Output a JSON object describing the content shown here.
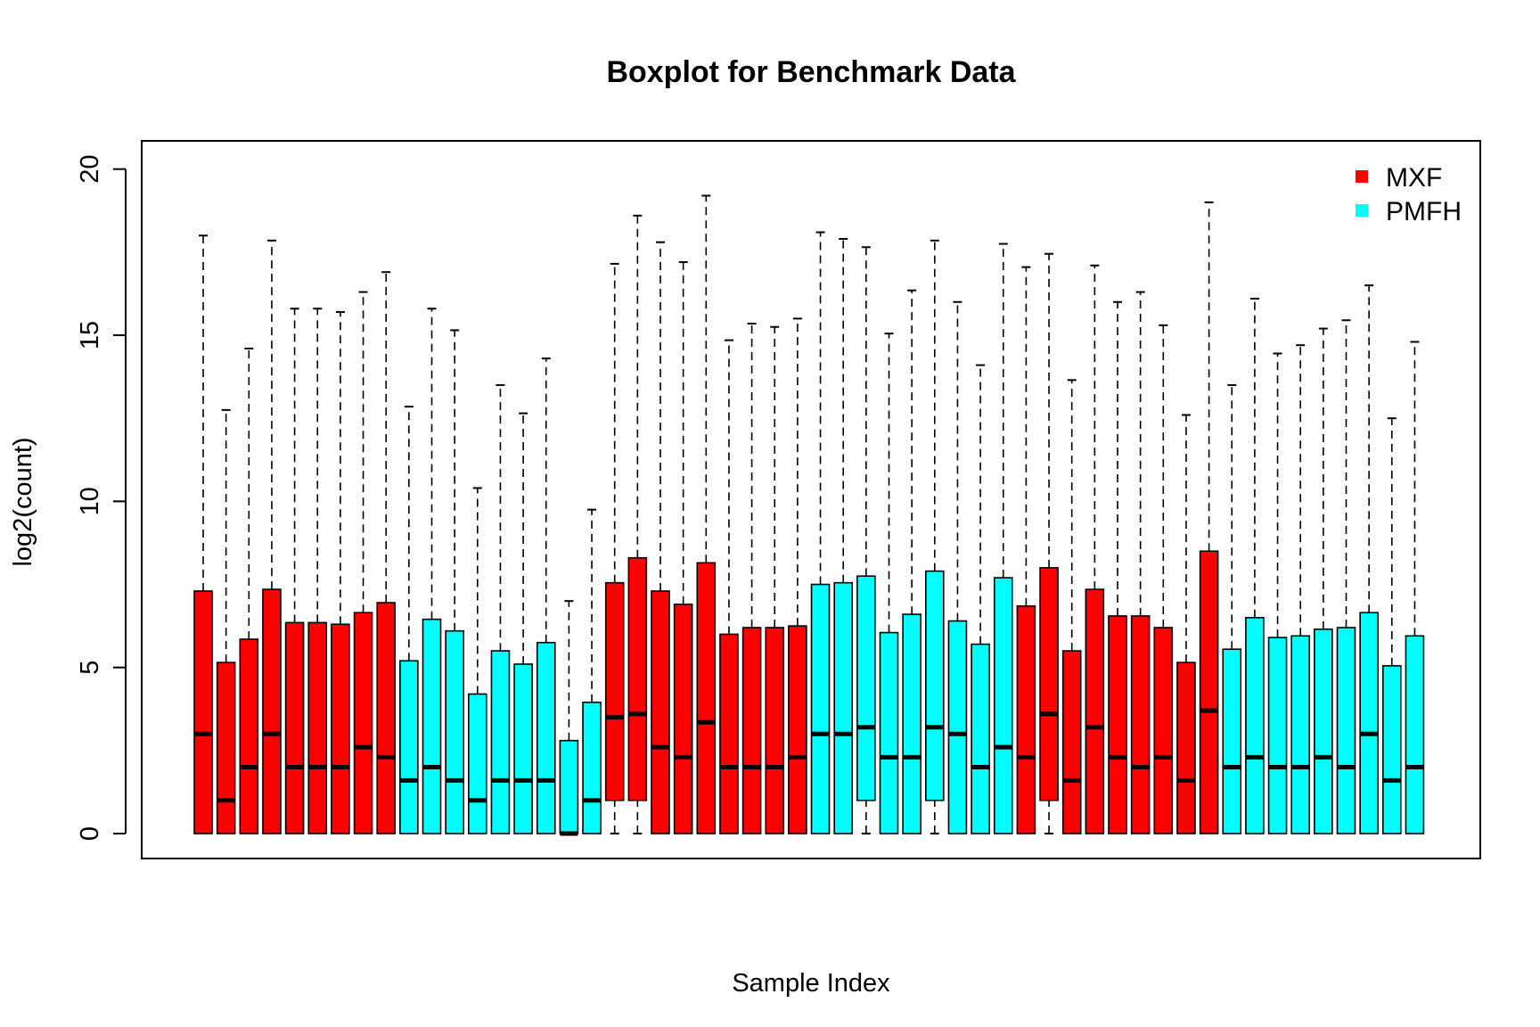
{
  "chart_data": {
    "type": "boxplot",
    "title": "Boxplot for Benchmark Data",
    "xlabel": "Sample Index",
    "ylabel": "log2(count)",
    "ylim": [
      -0.75,
      20.85
    ],
    "yticks": [
      0,
      5,
      10,
      15,
      20
    ],
    "grid": false,
    "legend_position": "top-right",
    "legend": [
      {
        "label": "MXF",
        "color": "#ff0000"
      },
      {
        "label": "PMFH",
        "color": "#00ffff"
      }
    ],
    "groups": {
      "MXF": "#ff0000",
      "PMFH": "#00ffff"
    },
    "samples": [
      {
        "group": "MXF",
        "min": 0,
        "q1": 0,
        "median": 3,
        "q3": 7.3,
        "max": 18.0
      },
      {
        "group": "MXF",
        "min": 0,
        "q1": 0,
        "median": 1,
        "q3": 5.15,
        "max": 12.75
      },
      {
        "group": "MXF",
        "min": 0,
        "q1": 0,
        "median": 2,
        "q3": 5.85,
        "max": 14.6
      },
      {
        "group": "MXF",
        "min": 0,
        "q1": 0,
        "median": 3,
        "q3": 7.35,
        "max": 17.85
      },
      {
        "group": "MXF",
        "min": 0,
        "q1": 0,
        "median": 2,
        "q3": 6.35,
        "max": 15.8
      },
      {
        "group": "MXF",
        "min": 0,
        "q1": 0,
        "median": 2,
        "q3": 6.35,
        "max": 15.8
      },
      {
        "group": "MXF",
        "min": 0,
        "q1": 0,
        "median": 2,
        "q3": 6.3,
        "max": 15.7
      },
      {
        "group": "MXF",
        "min": 0,
        "q1": 0,
        "median": 2.6,
        "q3": 6.65,
        "max": 16.3
      },
      {
        "group": "MXF",
        "min": 0,
        "q1": 0,
        "median": 2.3,
        "q3": 6.95,
        "max": 16.9
      },
      {
        "group": "PMFH",
        "min": 0,
        "q1": 0,
        "median": 1.6,
        "q3": 5.2,
        "max": 12.85
      },
      {
        "group": "PMFH",
        "min": 0,
        "q1": 0,
        "median": 2,
        "q3": 6.45,
        "max": 15.8
      },
      {
        "group": "PMFH",
        "min": 0,
        "q1": 0,
        "median": 1.6,
        "q3": 6.1,
        "max": 15.15
      },
      {
        "group": "PMFH",
        "min": 0,
        "q1": 0,
        "median": 1,
        "q3": 4.2,
        "max": 10.4
      },
      {
        "group": "PMFH",
        "min": 0,
        "q1": 0,
        "median": 1.6,
        "q3": 5.5,
        "max": 13.5
      },
      {
        "group": "PMFH",
        "min": 0,
        "q1": 0,
        "median": 1.6,
        "q3": 5.1,
        "max": 12.65
      },
      {
        "group": "PMFH",
        "min": 0,
        "q1": 0,
        "median": 1.6,
        "q3": 5.75,
        "max": 14.3
      },
      {
        "group": "PMFH",
        "min": 0,
        "q1": 0,
        "median": 0,
        "q3": 2.8,
        "max": 7.0
      },
      {
        "group": "PMFH",
        "min": 0,
        "q1": 0,
        "median": 1,
        "q3": 3.95,
        "max": 9.75
      },
      {
        "group": "MXF",
        "min": 0,
        "q1": 1,
        "median": 3.5,
        "q3": 7.55,
        "max": 17.15
      },
      {
        "group": "MXF",
        "min": 0,
        "q1": 1,
        "median": 3.6,
        "q3": 8.3,
        "max": 18.6
      },
      {
        "group": "MXF",
        "min": 0,
        "q1": 0,
        "median": 2.6,
        "q3": 7.3,
        "max": 17.8
      },
      {
        "group": "MXF",
        "min": 0,
        "q1": 0,
        "median": 2.3,
        "q3": 6.9,
        "max": 17.2
      },
      {
        "group": "MXF",
        "min": 0,
        "q1": 0,
        "median": 3.35,
        "q3": 8.15,
        "max": 19.2
      },
      {
        "group": "MXF",
        "min": 0,
        "q1": 0,
        "median": 2,
        "q3": 6.0,
        "max": 14.85
      },
      {
        "group": "MXF",
        "min": 0,
        "q1": 0,
        "median": 2,
        "q3": 6.2,
        "max": 15.35
      },
      {
        "group": "MXF",
        "min": 0,
        "q1": 0,
        "median": 2,
        "q3": 6.2,
        "max": 15.25
      },
      {
        "group": "MXF",
        "min": 0,
        "q1": 0,
        "median": 2.3,
        "q3": 6.25,
        "max": 15.5
      },
      {
        "group": "PMFH",
        "min": 0,
        "q1": 0,
        "median": 3,
        "q3": 7.5,
        "max": 18.1
      },
      {
        "group": "PMFH",
        "min": 0,
        "q1": 0,
        "median": 3,
        "q3": 7.55,
        "max": 17.9
      },
      {
        "group": "PMFH",
        "min": 0,
        "q1": 1,
        "median": 3.2,
        "q3": 7.75,
        "max": 17.65
      },
      {
        "group": "PMFH",
        "min": 0,
        "q1": 0,
        "median": 2.3,
        "q3": 6.05,
        "max": 15.05
      },
      {
        "group": "PMFH",
        "min": 0,
        "q1": 0,
        "median": 2.3,
        "q3": 6.6,
        "max": 16.35
      },
      {
        "group": "PMFH",
        "min": 0,
        "q1": 1,
        "median": 3.2,
        "q3": 7.9,
        "max": 17.85
      },
      {
        "group": "PMFH",
        "min": 0,
        "q1": 0,
        "median": 3,
        "q3": 6.4,
        "max": 16.0
      },
      {
        "group": "PMFH",
        "min": 0,
        "q1": 0,
        "median": 2,
        "q3": 5.7,
        "max": 14.1
      },
      {
        "group": "PMFH",
        "min": 0,
        "q1": 0,
        "median": 2.6,
        "q3": 7.7,
        "max": 17.75
      },
      {
        "group": "MXF",
        "min": 0,
        "q1": 0,
        "median": 2.3,
        "q3": 6.85,
        "max": 17.05
      },
      {
        "group": "MXF",
        "min": 0,
        "q1": 1,
        "median": 3.6,
        "q3": 8.0,
        "max": 17.45
      },
      {
        "group": "MXF",
        "min": 0,
        "q1": 0,
        "median": 1.6,
        "q3": 5.5,
        "max": 13.65
      },
      {
        "group": "MXF",
        "min": 0,
        "q1": 0,
        "median": 3.2,
        "q3": 7.35,
        "max": 17.1
      },
      {
        "group": "MXF",
        "min": 0,
        "q1": 0,
        "median": 2.3,
        "q3": 6.55,
        "max": 16.0
      },
      {
        "group": "MXF",
        "min": 0,
        "q1": 0,
        "median": 2,
        "q3": 6.55,
        "max": 16.3
      },
      {
        "group": "MXF",
        "min": 0,
        "q1": 0,
        "median": 2.3,
        "q3": 6.2,
        "max": 15.3
      },
      {
        "group": "MXF",
        "min": 0,
        "q1": 0,
        "median": 1.6,
        "q3": 5.15,
        "max": 12.6
      },
      {
        "group": "MXF",
        "min": 0,
        "q1": 0,
        "median": 3.7,
        "q3": 8.5,
        "max": 19.0
      },
      {
        "group": "PMFH",
        "min": 0,
        "q1": 0,
        "median": 2,
        "q3": 5.55,
        "max": 13.5
      },
      {
        "group": "PMFH",
        "min": 0,
        "q1": 0,
        "median": 2.3,
        "q3": 6.5,
        "max": 16.1
      },
      {
        "group": "PMFH",
        "min": 0,
        "q1": 0,
        "median": 2,
        "q3": 5.9,
        "max": 14.45
      },
      {
        "group": "PMFH",
        "min": 0,
        "q1": 0,
        "median": 2,
        "q3": 5.95,
        "max": 14.7
      },
      {
        "group": "PMFH",
        "min": 0,
        "q1": 0,
        "median": 2.3,
        "q3": 6.15,
        "max": 15.2
      },
      {
        "group": "PMFH",
        "min": 0,
        "q1": 0,
        "median": 2,
        "q3": 6.2,
        "max": 15.45
      },
      {
        "group": "PMFH",
        "min": 0,
        "q1": 0,
        "median": 3,
        "q3": 6.65,
        "max": 16.5
      },
      {
        "group": "PMFH",
        "min": 0,
        "q1": 0,
        "median": 1.6,
        "q3": 5.05,
        "max": 12.5
      },
      {
        "group": "PMFH",
        "min": 0,
        "q1": 0,
        "median": 2,
        "q3": 5.95,
        "max": 14.8
      }
    ]
  }
}
